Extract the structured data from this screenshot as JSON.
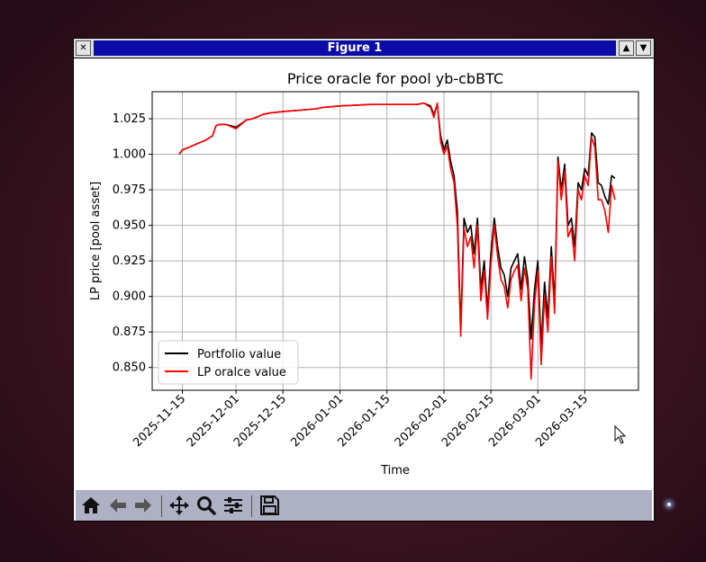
{
  "window": {
    "title": "Figure 1",
    "close_icon": "close-icon",
    "scroll_up_icon": "triangle-up-icon",
    "scroll_down_icon": "triangle-down-icon"
  },
  "toolbar": {
    "icons": [
      "home-icon",
      "back-arrow-icon",
      "forward-arrow-icon",
      "move-icon",
      "zoom-icon",
      "sliders-icon",
      "save-icon"
    ]
  },
  "colors": {
    "portfolio": "#000000",
    "lp_oracle": "#ff0000",
    "titlebar": "#0b0ba8",
    "toolbar": "#aeb0c4"
  },
  "chart_data": {
    "type": "line",
    "title": "Price oracle for pool yb-cbBTC",
    "xlabel": "Time",
    "ylabel": "LP price [pool asset]",
    "grid": true,
    "legend": "lower-left",
    "xlim": [
      "2025-11-06",
      "2026-03-31"
    ],
    "ylim": [
      0.834,
      1.044
    ],
    "x_ticks": [
      "2025-11-15",
      "2025-12-01",
      "2025-12-15",
      "2026-01-01",
      "2026-01-15",
      "2026-02-01",
      "2026-02-15",
      "2026-03-01",
      "2026-03-15"
    ],
    "y_ticks": [
      "0.850",
      "0.875",
      "0.900",
      "0.925",
      "0.950",
      "0.975",
      "1.000",
      "1.025"
    ],
    "x": [
      "2025-11-14",
      "2025-11-15",
      "2025-11-17",
      "2025-11-19",
      "2025-11-21",
      "2025-11-22",
      "2025-11-24",
      "2025-11-25",
      "2025-11-26",
      "2025-11-28",
      "2025-12-01",
      "2025-12-04",
      "2025-12-06",
      "2025-12-07",
      "2025-12-08",
      "2025-12-09",
      "2025-12-11",
      "2025-12-15",
      "2025-12-20",
      "2025-12-25",
      "2025-12-27",
      "2026-01-01",
      "2026-01-10",
      "2026-01-20",
      "2026-01-24",
      "2026-01-26",
      "2026-01-28",
      "2026-01-29",
      "2026-01-30",
      "2026-01-31",
      "2026-02-01",
      "2026-02-02",
      "2026-02-03",
      "2026-02-04",
      "2026-02-05",
      "2026-02-06",
      "2026-02-07",
      "2026-02-08",
      "2026-02-09",
      "2026-02-10",
      "2026-02-11",
      "2026-02-12",
      "2026-02-13",
      "2026-02-14",
      "2026-02-15",
      "2026-02-16",
      "2026-02-17",
      "2026-02-18",
      "2026-02-19",
      "2026-02-20",
      "2026-02-21",
      "2026-02-22",
      "2026-02-23",
      "2026-02-24",
      "2026-02-25",
      "2026-02-26",
      "2026-02-27",
      "2026-02-28",
      "2026-03-01",
      "2026-03-02",
      "2026-03-03",
      "2026-03-04",
      "2026-03-05",
      "2026-03-06",
      "2026-03-07",
      "2026-03-08",
      "2026-03-09",
      "2026-03-10",
      "2026-03-11",
      "2026-03-12",
      "2026-03-13",
      "2026-03-14",
      "2026-03-15",
      "2026-03-16",
      "2026-03-17",
      "2026-03-18",
      "2026-03-19",
      "2026-03-20",
      "2026-03-21",
      "2026-03-22",
      "2026-03-23",
      "2026-03-24"
    ],
    "series": [
      {
        "name": "Portfolio value",
        "color": "#000000",
        "values": [
          1.0,
          1.003,
          1.005,
          1.007,
          1.009,
          1.01,
          1.013,
          1.02,
          1.021,
          1.021,
          1.019,
          1.024,
          1.025,
          1.026,
          1.027,
          1.028,
          1.029,
          1.03,
          1.031,
          1.032,
          1.033,
          1.034,
          1.035,
          1.035,
          1.035,
          1.036,
          1.034,
          1.028,
          1.035,
          1.013,
          1.003,
          1.01,
          0.995,
          0.985,
          0.96,
          0.877,
          0.955,
          0.945,
          0.95,
          0.93,
          0.955,
          0.905,
          0.925,
          0.89,
          0.93,
          0.955,
          0.935,
          0.92,
          0.915,
          0.9,
          0.92,
          0.925,
          0.93,
          0.905,
          0.928,
          0.912,
          0.87,
          0.905,
          0.925,
          0.865,
          0.91,
          0.885,
          0.935,
          0.895,
          0.998,
          0.975,
          0.993,
          0.95,
          0.955,
          0.935,
          0.98,
          0.975,
          0.99,
          0.985,
          1.015,
          1.012,
          0.98,
          0.978,
          0.97,
          0.965,
          0.985,
          0.983
        ]
      },
      {
        "name": "LP oralce value",
        "color": "#ff0000",
        "values": [
          1.0,
          1.003,
          1.005,
          1.007,
          1.009,
          1.01,
          1.013,
          1.02,
          1.021,
          1.021,
          1.018,
          1.024,
          1.025,
          1.026,
          1.027,
          1.028,
          1.029,
          1.03,
          1.031,
          1.032,
          1.033,
          1.034,
          1.035,
          1.035,
          1.035,
          1.036,
          1.033,
          1.026,
          1.036,
          1.009,
          1.0,
          1.006,
          0.99,
          0.98,
          0.95,
          0.872,
          0.948,
          0.935,
          0.942,
          0.92,
          0.95,
          0.897,
          0.918,
          0.884,
          0.922,
          0.95,
          0.928,
          0.912,
          0.907,
          0.892,
          0.912,
          0.918,
          0.922,
          0.897,
          0.92,
          0.905,
          0.842,
          0.895,
          0.918,
          0.852,
          0.9,
          0.875,
          0.928,
          0.888,
          0.995,
          0.968,
          0.988,
          0.942,
          0.948,
          0.925,
          0.975,
          0.968,
          0.985,
          0.978,
          1.012,
          1.005,
          0.968,
          0.968,
          0.96,
          0.945,
          0.978,
          0.968
        ]
      }
    ]
  }
}
